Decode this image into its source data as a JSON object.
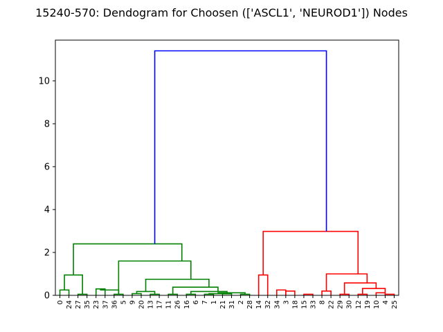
{
  "chart_data": {
    "type": "dendrogram",
    "title": "15240-570: Dendogram for Choosen (['ASCL1', 'NEUROD1']) Nodes",
    "xlabel": "",
    "ylabel": "",
    "ylim": [
      0,
      11.9
    ],
    "yticks": [
      0,
      2,
      4,
      6,
      8,
      10
    ],
    "grid": false,
    "leaf_order": [
      "0",
      "24",
      "27",
      "35",
      "23",
      "37",
      "36",
      "5",
      "9",
      "20",
      "13",
      "17",
      "11",
      "26",
      "16",
      "6",
      "7",
      "1",
      "21",
      "31",
      "2",
      "28",
      "14",
      "32",
      "34",
      "3",
      "18",
      "15",
      "33",
      "8",
      "22",
      "29",
      "30",
      "12",
      "19",
      "10",
      "4",
      "25"
    ],
    "colors": {
      "cluster_green": "#008000",
      "cluster_red": "#ff0000",
      "root_link": "#0000ff",
      "axes": "#000000"
    },
    "links": [
      {
        "color": "green",
        "height": 0.25,
        "left": [
          0
        ],
        "right": [
          1
        ],
        "lh": [
          0,
          0
        ]
      },
      {
        "color": "green",
        "height": 0.05,
        "left": [
          2
        ],
        "right": [
          3
        ],
        "lh": [
          0,
          0
        ]
      },
      {
        "color": "green",
        "height": 0.95,
        "left": [
          0,
          1
        ],
        "right": [
          2,
          3
        ],
        "lh": [
          0.25,
          0.05
        ]
      },
      {
        "color": "green",
        "height": 0.3,
        "left": [
          4
        ],
        "right": [
          5
        ],
        "lh": [
          0,
          0
        ]
      },
      {
        "color": "green",
        "height": 0.05,
        "left": [
          6
        ],
        "right": [
          7
        ],
        "lh": [
          0,
          0
        ]
      },
      {
        "color": "green",
        "height": 0.08,
        "left": [
          8
        ],
        "right": [
          9
        ],
        "lh": [
          0,
          0
        ]
      },
      {
        "color": "green",
        "height": 0.05,
        "left": [
          10
        ],
        "right": [
          11
        ],
        "lh": [
          0,
          0
        ]
      },
      {
        "color": "green",
        "height": 0.25,
        "left": [
          4,
          5
        ],
        "right": [
          6,
          7
        ],
        "lh": [
          0.3,
          0.05
        ]
      },
      {
        "color": "green",
        "height": 0.18,
        "left": [
          8,
          9
        ],
        "right": [
          10,
          11
        ],
        "lh": [
          0.08,
          0.05
        ]
      },
      {
        "color": "green",
        "height": 0.05,
        "left": [
          12
        ],
        "right": [
          13
        ],
        "lh": [
          0,
          0
        ]
      },
      {
        "color": "green",
        "height": 0.05,
        "left": [
          14
        ],
        "right": [
          15
        ],
        "lh": [
          0,
          0
        ]
      },
      {
        "color": "green",
        "height": 0.05,
        "left": [
          16
        ],
        "right": [
          17
        ],
        "lh": [
          0,
          0
        ]
      },
      {
        "color": "green",
        "height": 0.07,
        "left": [
          18
        ],
        "right": [
          19
        ],
        "lh": [
          0,
          0
        ]
      },
      {
        "color": "green",
        "height": 0.05,
        "left": [
          20
        ],
        "right": [
          21
        ],
        "lh": [
          0,
          0
        ]
      },
      {
        "color": "green",
        "height": 0.08,
        "left": [
          16,
          17
        ],
        "right": [
          18,
          19
        ],
        "lh": [
          0.05,
          0.07
        ]
      },
      {
        "color": "green",
        "height": 0.12,
        "left": [
          16,
          17,
          18,
          19
        ],
        "right": [
          20,
          21
        ],
        "lh": [
          0.08,
          0.05
        ]
      },
      {
        "color": "green",
        "height": 0.18,
        "left": [
          14,
          15
        ],
        "right": [
          16,
          17,
          18,
          19,
          20,
          21
        ],
        "lh": [
          0.05,
          0.12
        ]
      },
      {
        "color": "green",
        "height": 0.38,
        "left": [
          12,
          13
        ],
        "right": [
          14,
          15,
          16,
          17,
          18,
          19,
          20,
          21
        ],
        "lh": [
          0.05,
          0.18
        ]
      },
      {
        "color": "green",
        "height": 0.75,
        "left": [
          8,
          9,
          10,
          11
        ],
        "right": [
          12,
          13,
          14,
          15,
          16,
          17,
          18,
          19,
          20,
          21
        ],
        "lh": [
          0.18,
          0.38
        ]
      },
      {
        "color": "green",
        "height": 1.6,
        "left": [
          6,
          7
        ],
        "right": [
          8,
          9,
          10,
          11,
          12,
          13,
          14,
          15,
          16,
          17,
          18,
          19,
          20,
          21
        ],
        "lh": [
          0.05,
          0.75
        ]
      },
      {
        "color": "green",
        "height": 2.4,
        "left": [
          0,
          1,
          2,
          3
        ],
        "right": [
          6,
          7,
          8,
          9,
          10,
          11,
          12,
          13,
          14,
          15,
          16,
          17,
          18,
          19,
          20,
          21
        ],
        "lh": [
          0.95,
          1.6
        ]
      },
      {
        "color": "red",
        "height": 0.95,
        "left": [
          22
        ],
        "right": [
          23
        ],
        "lh": [
          0,
          0
        ]
      },
      {
        "color": "red",
        "height": 0.25,
        "left": [
          24
        ],
        "right": [
          25
        ],
        "lh": [
          0,
          0
        ]
      },
      {
        "color": "red",
        "height": 0.2,
        "left": [
          25
        ],
        "right": [
          26
        ],
        "lh": [
          0,
          0
        ]
      },
      {
        "color": "red",
        "height": 0.05,
        "left": [
          27
        ],
        "right": [
          28
        ],
        "lh": [
          0,
          0
        ]
      },
      {
        "color": "red",
        "height": 0.2,
        "left": [
          29
        ],
        "right": [
          30
        ],
        "lh": [
          0,
          0
        ]
      },
      {
        "color": "red",
        "height": 0.05,
        "left": [
          31
        ],
        "right": [
          32
        ],
        "lh": [
          0,
          0
        ]
      },
      {
        "color": "red",
        "height": 0.05,
        "left": [
          33
        ],
        "right": [
          34
        ],
        "lh": [
          0,
          0
        ]
      },
      {
        "color": "red",
        "height": 0.12,
        "left": [
          35
        ],
        "right": [
          36
        ],
        "lh": [
          0,
          0
        ]
      },
      {
        "color": "red",
        "height": 0.05,
        "left": [
          36
        ],
        "right": [
          37
        ],
        "lh": [
          0,
          0
        ]
      },
      {
        "color": "red",
        "height": 0.32,
        "left": [
          33,
          34
        ],
        "right": [
          35,
          36,
          37
        ],
        "lh": [
          0.05,
          0.12
        ]
      },
      {
        "color": "red",
        "height": 0.58,
        "left": [
          31,
          32
        ],
        "right": [
          33,
          34,
          35,
          36,
          37
        ],
        "lh": [
          0.05,
          0.32
        ]
      },
      {
        "color": "red",
        "height": 1.0,
        "left": [
          29,
          30
        ],
        "right": [
          31,
          32,
          33,
          34,
          35,
          36,
          37
        ],
        "lh": [
          0.2,
          0.58
        ]
      },
      {
        "color": "red",
        "height": 2.98,
        "left": [
          22,
          23
        ],
        "right": [
          29,
          30,
          31,
          32,
          33,
          34,
          35,
          36,
          37
        ],
        "lh": [
          0.95,
          1.0
        ]
      },
      {
        "color": "blue",
        "height": 11.4,
        "left": [
          0,
          1,
          2,
          3,
          4,
          5,
          6,
          7,
          8,
          9,
          10,
          11,
          12,
          13,
          14,
          15,
          16,
          17,
          18,
          19,
          20,
          21
        ],
        "right": [
          22,
          23,
          24,
          25,
          26,
          27,
          28,
          29,
          30,
          31,
          32,
          33,
          34,
          35,
          36,
          37
        ],
        "lh": [
          2.4,
          2.98
        ]
      }
    ]
  }
}
